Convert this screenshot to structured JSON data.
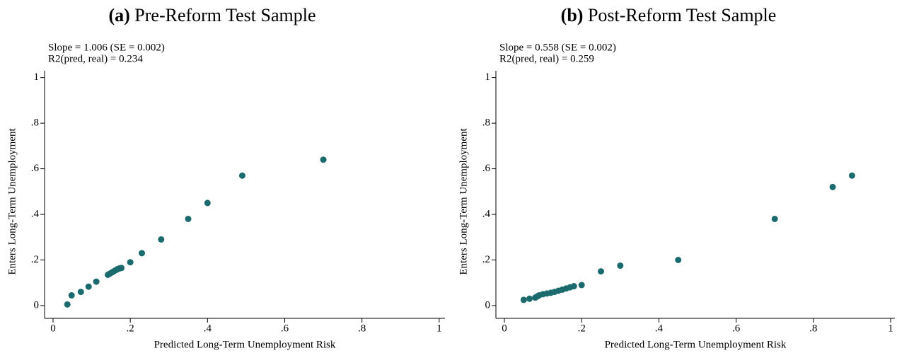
{
  "chart_data": [
    {
      "type": "scatter",
      "panel_label": "(a)",
      "title": "Pre-Reform Test Sample",
      "annotations": [
        "Slope = 1.006 (SE = 0.002)",
        "R2(pred, real) = 0.234"
      ],
      "x_label": "Predicted Long-Term Unemployment Risk",
      "y_label": "Enters Long-Term Unemployment",
      "xlim": [
        -0.022,
        1.015
      ],
      "ylim": [
        -0.056,
        1.03
      ],
      "xticks": [
        0,
        {
          "value": 0.2,
          "label": ".2"
        },
        {
          "value": 0.4,
          "label": ".4"
        },
        {
          "value": 0.6,
          "label": ".6"
        },
        {
          "value": 0.8,
          "label": ".8"
        },
        1
      ],
      "yticks": [
        0,
        {
          "value": 0.2,
          "label": ".2"
        },
        {
          "value": 0.4,
          "label": ".4"
        },
        {
          "value": 0.6,
          "label": ".6"
        },
        {
          "value": 0.8,
          "label": ".8"
        },
        1
      ],
      "grid": false,
      "series": [
        {
          "color": "#1b6b6e",
          "x": [
            0.037,
            0.048,
            0.072,
            0.092,
            0.112,
            0.142,
            0.147,
            0.152,
            0.157,
            0.162,
            0.167,
            0.172,
            0.177,
            0.2,
            0.23,
            0.28,
            0.35,
            0.4,
            0.49,
            0.7
          ],
          "values": [
            0.005,
            0.045,
            0.06,
            0.083,
            0.105,
            0.135,
            0.14,
            0.145,
            0.15,
            0.155,
            0.16,
            0.163,
            0.165,
            0.19,
            0.23,
            0.29,
            0.38,
            0.45,
            0.57,
            0.64
          ]
        }
      ]
    },
    {
      "type": "scatter",
      "panel_label": "(b)",
      "title": "Post-Reform Test Sample",
      "annotations": [
        "Slope = 0.558 (SE = 0.002)",
        "R2(pred, real) = 0.259"
      ],
      "x_label": "Predicted Long-Term Unemployment Risk",
      "y_label": "Enters Long-Term Unemployment",
      "xlim": [
        -0.022,
        1.011
      ],
      "ylim": [
        -0.056,
        1.03
      ],
      "xticks": [
        0,
        {
          "value": 0.2,
          "label": ".2"
        },
        {
          "value": 0.4,
          "label": ".4"
        },
        {
          "value": 0.6,
          "label": ".6"
        },
        {
          "value": 0.8,
          "label": ".8"
        },
        1
      ],
      "yticks": [
        0,
        {
          "value": 0.2,
          "label": ".2"
        },
        {
          "value": 0.4,
          "label": ".4"
        },
        {
          "value": 0.6,
          "label": ".6"
        },
        {
          "value": 0.8,
          "label": ".8"
        },
        1
      ],
      "grid": false,
      "series": [
        {
          "color": "#1b6b6e",
          "x": [
            0.05,
            0.065,
            0.08,
            0.085,
            0.09,
            0.1,
            0.11,
            0.12,
            0.13,
            0.14,
            0.15,
            0.16,
            0.17,
            0.18,
            0.2,
            0.25,
            0.3,
            0.45,
            0.7,
            0.85,
            0.9
          ],
          "values": [
            0.025,
            0.03,
            0.035,
            0.04,
            0.045,
            0.05,
            0.053,
            0.056,
            0.06,
            0.065,
            0.07,
            0.075,
            0.08,
            0.085,
            0.09,
            0.15,
            0.175,
            0.2,
            0.38,
            0.52,
            0.57
          ]
        }
      ]
    }
  ]
}
